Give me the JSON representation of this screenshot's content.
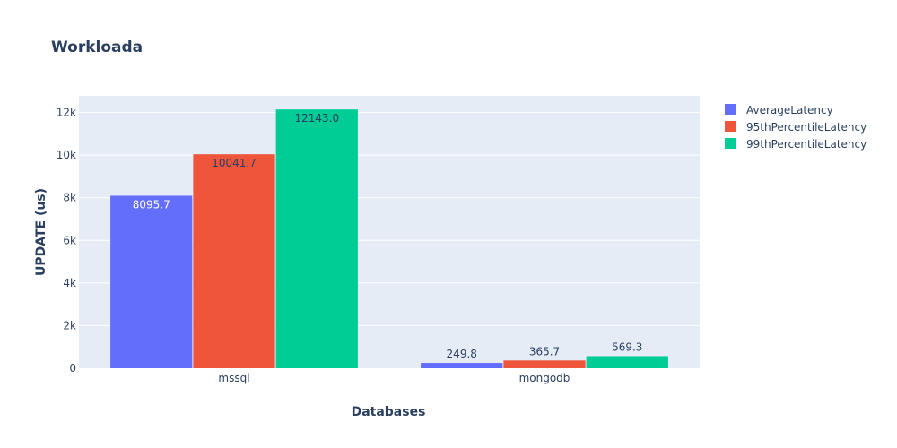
{
  "chart_data": {
    "type": "bar",
    "title": "Workloada",
    "xlabel": "Databases",
    "ylabel": "UPDATE (us)",
    "categories": [
      "mssql",
      "mongodb"
    ],
    "series": [
      {
        "name": "AverageLatency",
        "color": "#636efa",
        "values": [
          8095.7,
          249.8
        ],
        "labels": [
          "8095.7",
          "249.8"
        ]
      },
      {
        "name": "95thPercentileLatency",
        "color": "#ef553b",
        "values": [
          10041.7,
          365.7
        ],
        "labels": [
          "10041.7",
          "365.7"
        ]
      },
      {
        "name": "99thPercentileLatency",
        "color": "#00cc96",
        "values": [
          12143.0,
          569.3
        ],
        "labels": [
          "12143.0",
          "569.3"
        ]
      }
    ],
    "ylim": [
      0,
      12782
    ],
    "yticks": [
      0,
      2000,
      4000,
      6000,
      8000,
      10000,
      12000
    ],
    "ytick_labels": [
      "0",
      "2k",
      "4k",
      "6k",
      "8k",
      "10k",
      "12k"
    ],
    "grid": true,
    "legend_position": "top-right",
    "background_color": "#e5ecf6"
  }
}
